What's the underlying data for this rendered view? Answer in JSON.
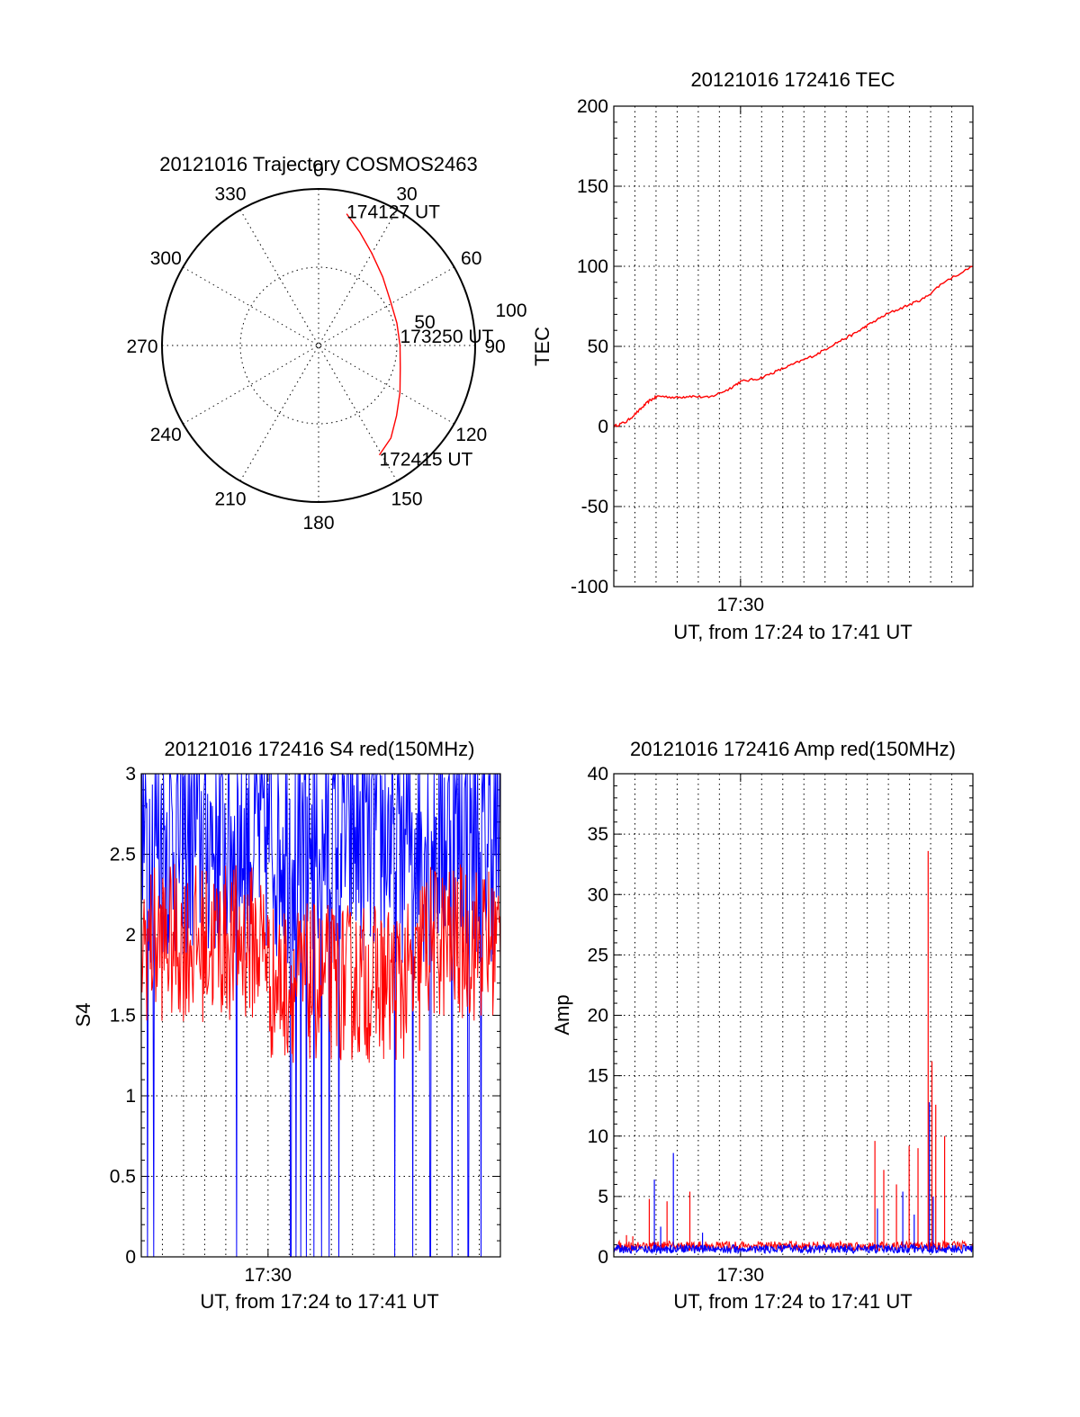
{
  "colors": {
    "red_series": "#ff0000",
    "blue_series": "#0000ff",
    "axes": "#000000"
  },
  "chart_data": [
    {
      "type": "polar",
      "title": "20121016 Trajectory COSMOS2463",
      "azimuth_labels": [
        "0",
        "30",
        "60",
        "90",
        "120",
        "150",
        "180",
        "210",
        "240",
        "270",
        "300",
        "330"
      ],
      "radial_labels": [
        "50",
        "100"
      ],
      "track_points": [
        {
          "az": 12,
          "r": 86
        },
        {
          "az": 20,
          "r": 77
        },
        {
          "az": 30,
          "r": 68
        },
        {
          "az": 43,
          "r": 60
        },
        {
          "az": 58,
          "r": 54
        },
        {
          "az": 74,
          "r": 52
        },
        {
          "az": 90,
          "r": 52
        },
        {
          "az": 105,
          "r": 54
        },
        {
          "az": 120,
          "r": 60
        },
        {
          "az": 132,
          "r": 67
        },
        {
          "az": 142,
          "r": 75
        },
        {
          "az": 151,
          "r": 80
        }
      ],
      "annotations": [
        {
          "text": "174127 UT",
          "az": 12,
          "r": 86
        },
        {
          "text": "173250 UT",
          "az": 90,
          "r": 52
        },
        {
          "text": "172415 UT",
          "az": 151,
          "r": 80
        }
      ]
    },
    {
      "type": "line",
      "title": "20121016 172416 TEC",
      "xlabel": "UT, from 17:24 to 17:41 UT",
      "ylabel": "TEC",
      "xlim": [
        17.4,
        17.6833
      ],
      "ylim": [
        -100,
        200
      ],
      "yticks": [
        -100,
        -50,
        0,
        50,
        100,
        150,
        200
      ],
      "xtick_labels": [
        {
          "x": 17.5,
          "label": "17:30"
        }
      ],
      "grid": true,
      "series": [
        {
          "color": "#ff0000",
          "x": [
            17.4,
            17.41,
            17.42,
            17.428,
            17.435,
            17.45,
            17.46,
            17.475,
            17.49,
            17.5,
            17.515,
            17.53,
            17.545,
            17.56,
            17.575,
            17.59,
            17.6,
            17.615,
            17.63,
            17.645,
            17.66,
            17.6833
          ],
          "y": [
            0,
            3,
            10,
            16,
            19,
            18,
            19,
            18,
            23,
            28,
            30,
            35,
            40,
            45,
            52,
            58,
            63,
            70,
            75,
            80,
            90,
            100
          ]
        }
      ]
    },
    {
      "type": "line",
      "title": "20121016 172416 S4 red(150MHz)",
      "xlabel": "UT, from 17:24 to 17:41 UT",
      "ylabel": "S4",
      "xlim": [
        17.4,
        17.6833
      ],
      "ylim": [
        0,
        3
      ],
      "yticks": [
        0,
        0.5,
        1,
        1.5,
        2,
        2.5,
        3
      ],
      "ytick_labels": [
        "0",
        "0.5",
        "1",
        "1.5",
        "2",
        "2.5",
        "3"
      ],
      "xtick_labels": [
        {
          "x": 17.5,
          "label": "17:30"
        }
      ],
      "grid": true,
      "series": [
        {
          "color": "#0000ff",
          "style": "noisy",
          "base": 2.3,
          "spread": 1.0,
          "dropouts": [
            17.41,
            17.405,
            17.475,
            17.518,
            17.522,
            17.526,
            17.53,
            17.536,
            17.542,
            17.548,
            17.556,
            17.6,
            17.614,
            17.628,
            17.645,
            17.658,
            17.668
          ]
        },
        {
          "color": "#ff0000",
          "style": "noisy",
          "base": 1.95,
          "spread": 0.45
        }
      ]
    },
    {
      "type": "line",
      "title": "20121016 172416 Amp red(150MHz)",
      "xlabel": "UT, from 17:24 to 17:41 UT",
      "ylabel": "Amp",
      "xlim": [
        17.4,
        17.6833
      ],
      "ylim": [
        0,
        40
      ],
      "yticks": [
        0,
        5,
        10,
        15,
        20,
        25,
        30,
        35,
        40
      ],
      "xtick_labels": [
        {
          "x": 17.5,
          "label": "17:30"
        }
      ],
      "grid": true,
      "spikes": [
        {
          "color": "#ff0000",
          "x": 17.428,
          "y": 4.8
        },
        {
          "color": "#ff0000",
          "x": 17.442,
          "y": 4.6
        },
        {
          "color": "#ff0000",
          "x": 17.46,
          "y": 5.4
        },
        {
          "color": "#ff0000",
          "x": 17.41,
          "y": 1.8
        },
        {
          "color": "#ff0000",
          "x": 17.415,
          "y": 1.7
        },
        {
          "color": "#ff0000",
          "x": 17.606,
          "y": 9.6
        },
        {
          "color": "#ff0000",
          "x": 17.613,
          "y": 7.2
        },
        {
          "color": "#ff0000",
          "x": 17.623,
          "y": 6.0
        },
        {
          "color": "#ff0000",
          "x": 17.633,
          "y": 9.2
        },
        {
          "color": "#ff0000",
          "x": 17.64,
          "y": 9.0
        },
        {
          "color": "#ff0000",
          "x": 17.648,
          "y": 33.6
        },
        {
          "color": "#ff0000",
          "x": 17.651,
          "y": 16.2
        },
        {
          "color": "#ff0000",
          "x": 17.654,
          "y": 12.6
        },
        {
          "color": "#ff0000",
          "x": 17.661,
          "y": 10.0
        },
        {
          "color": "#0000ff",
          "x": 17.432,
          "y": 6.4
        },
        {
          "color": "#0000ff",
          "x": 17.447,
          "y": 8.6
        },
        {
          "color": "#0000ff",
          "x": 17.437,
          "y": 2.5
        },
        {
          "color": "#0000ff",
          "x": 17.47,
          "y": 2.0
        },
        {
          "color": "#0000ff",
          "x": 17.608,
          "y": 4.0
        },
        {
          "color": "#0000ff",
          "x": 17.628,
          "y": 5.4
        },
        {
          "color": "#0000ff",
          "x": 17.637,
          "y": 3.5
        },
        {
          "color": "#0000ff",
          "x": 17.649,
          "y": 12.8
        },
        {
          "color": "#0000ff",
          "x": 17.652,
          "y": 5.0
        }
      ]
    }
  ]
}
